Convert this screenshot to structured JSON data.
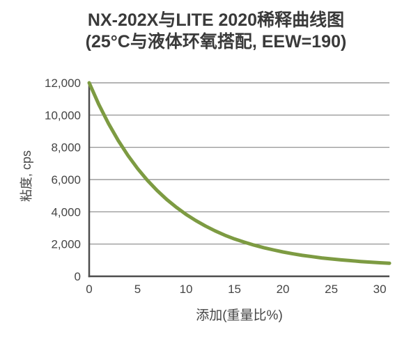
{
  "chart_data": {
    "type": "line",
    "title": "NX-202X与LITE 2020稀释曲线图",
    "subtitle": "(25°C与液体环氧搭配, EEW=190)",
    "xlabel": "添加(重量比%)",
    "ylabel": "粘度, cps",
    "x": [
      0,
      1,
      2,
      3,
      4,
      5,
      6,
      7,
      8,
      9,
      10,
      11,
      12,
      13,
      14,
      15,
      16,
      17,
      18,
      19,
      20,
      21,
      22,
      23,
      24,
      25,
      26,
      27,
      28,
      29,
      30,
      31
    ],
    "y": [
      12000,
      10650,
      9470,
      8420,
      7500,
      6680,
      5960,
      5330,
      4770,
      4280,
      3840,
      3460,
      3120,
      2820,
      2550,
      2320,
      2120,
      1940,
      1780,
      1640,
      1510,
      1400,
      1300,
      1220,
      1140,
      1080,
      1020,
      970,
      920,
      880,
      840,
      810
    ],
    "xlim": [
      0,
      31
    ],
    "ylim": [
      0,
      12000
    ],
    "xticks": [
      0,
      5,
      10,
      15,
      20,
      25,
      30
    ],
    "xtick_labels": [
      "0",
      "5",
      "10",
      "15",
      "20",
      "25",
      "30"
    ],
    "yticks": [
      0,
      2000,
      4000,
      6000,
      8000,
      10000,
      12000
    ],
    "ytick_labels": [
      "0",
      "2,000",
      "4,000",
      "6,000",
      "8,000",
      "10,000",
      "12,000"
    ],
    "grid": "horizontal",
    "legend": "none",
    "colors": {
      "curve": "#7d9b42",
      "gridline": "#878787",
      "spine": "#4d4d4d",
      "tick_text": "#454545",
      "title_text": "#3a3a3a",
      "background": "#ffffff"
    }
  }
}
